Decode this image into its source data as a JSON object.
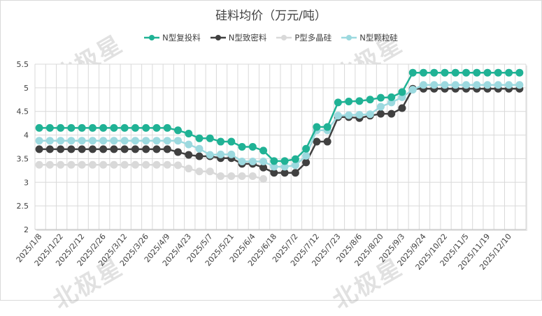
{
  "watermark": "北极星",
  "chart_data": {
    "type": "line",
    "title": "硅料均价（万元/吨）",
    "xlabel": "",
    "ylabel": "",
    "ylim": [
      2,
      5.5
    ],
    "yticks": [
      "2",
      "2.5",
      "3",
      "3.5",
      "4",
      "4.5",
      "5",
      "5.5"
    ],
    "grid": true,
    "legend_position": "top",
    "point_count": 46,
    "x_labels": [
      "2025/1/8",
      "2025/1/22",
      "2025/2/12",
      "2025/2/26",
      "2025/3/12",
      "2025/3/26",
      "2025/4/9",
      "2025/4/23",
      "2025/5/7",
      "2025/5/21",
      "2025/6/4",
      "2025/6/18",
      "2025/7/2",
      "2025/7/12",
      "2025/7/23",
      "2025/8/6",
      "2025/8/20",
      "2025/9/3",
      "2025/9/24",
      "2025/10/22",
      "2025/11/5",
      "2025/11/19",
      "2025/12/10"
    ],
    "series": [
      {
        "name": "N型复投料",
        "color": "#20b295",
        "values": [
          4.15,
          4.15,
          4.15,
          4.15,
          4.15,
          4.15,
          4.15,
          4.15,
          4.15,
          4.15,
          4.15,
          4.15,
          4.15,
          4.1,
          4.03,
          3.93,
          3.93,
          3.86,
          3.86,
          3.75,
          3.75,
          3.67,
          3.45,
          3.45,
          3.49,
          3.71,
          4.17,
          4.17,
          4.69,
          4.71,
          4.72,
          4.75,
          4.79,
          4.8,
          4.91,
          5.32,
          5.32,
          5.32,
          5.32,
          5.32,
          5.32,
          5.32,
          5.32,
          5.32,
          5.32,
          5.32
        ]
      },
      {
        "name": "N型致密料",
        "color": "#404040",
        "values": [
          3.7,
          3.7,
          3.7,
          3.7,
          3.7,
          3.7,
          3.7,
          3.7,
          3.7,
          3.7,
          3.7,
          3.7,
          3.7,
          3.64,
          3.58,
          3.55,
          3.55,
          3.51,
          3.51,
          3.39,
          3.39,
          3.31,
          3.2,
          3.2,
          3.2,
          3.42,
          3.86,
          3.86,
          4.38,
          4.38,
          4.36,
          4.41,
          4.45,
          4.45,
          4.57,
          4.98,
          4.98,
          4.98,
          4.98,
          4.98,
          4.98,
          4.98,
          4.98,
          4.98,
          4.98,
          4.98
        ]
      },
      {
        "name": "P型多晶硅",
        "color": "#d9d9d9",
        "values": [
          3.37,
          3.37,
          3.37,
          3.37,
          3.37,
          3.37,
          3.37,
          3.37,
          3.37,
          3.37,
          3.37,
          3.37,
          3.37,
          3.36,
          3.29,
          3.23,
          3.23,
          3.13,
          3.13,
          3.13,
          3.13,
          3.07,
          null,
          null,
          null,
          null,
          null,
          null,
          null,
          null,
          null,
          null,
          null,
          null,
          null,
          null,
          null,
          null,
          null,
          null,
          null,
          null,
          null,
          null,
          null,
          null
        ]
      },
      {
        "name": "N型颗粒硅",
        "color": "#9cd9df",
        "values": [
          3.88,
          3.88,
          3.88,
          3.88,
          3.88,
          3.88,
          3.88,
          3.88,
          3.88,
          3.88,
          3.88,
          3.88,
          3.88,
          3.88,
          3.8,
          3.71,
          3.58,
          3.59,
          3.59,
          3.44,
          3.44,
          3.44,
          3.33,
          3.33,
          3.36,
          3.56,
          4.1,
          4.1,
          4.41,
          4.42,
          4.43,
          4.44,
          4.6,
          4.69,
          4.8,
          4.96,
          5.06,
          5.06,
          5.06,
          5.06,
          5.06,
          5.06,
          5.06,
          5.06,
          5.06,
          5.06
        ]
      }
    ]
  }
}
